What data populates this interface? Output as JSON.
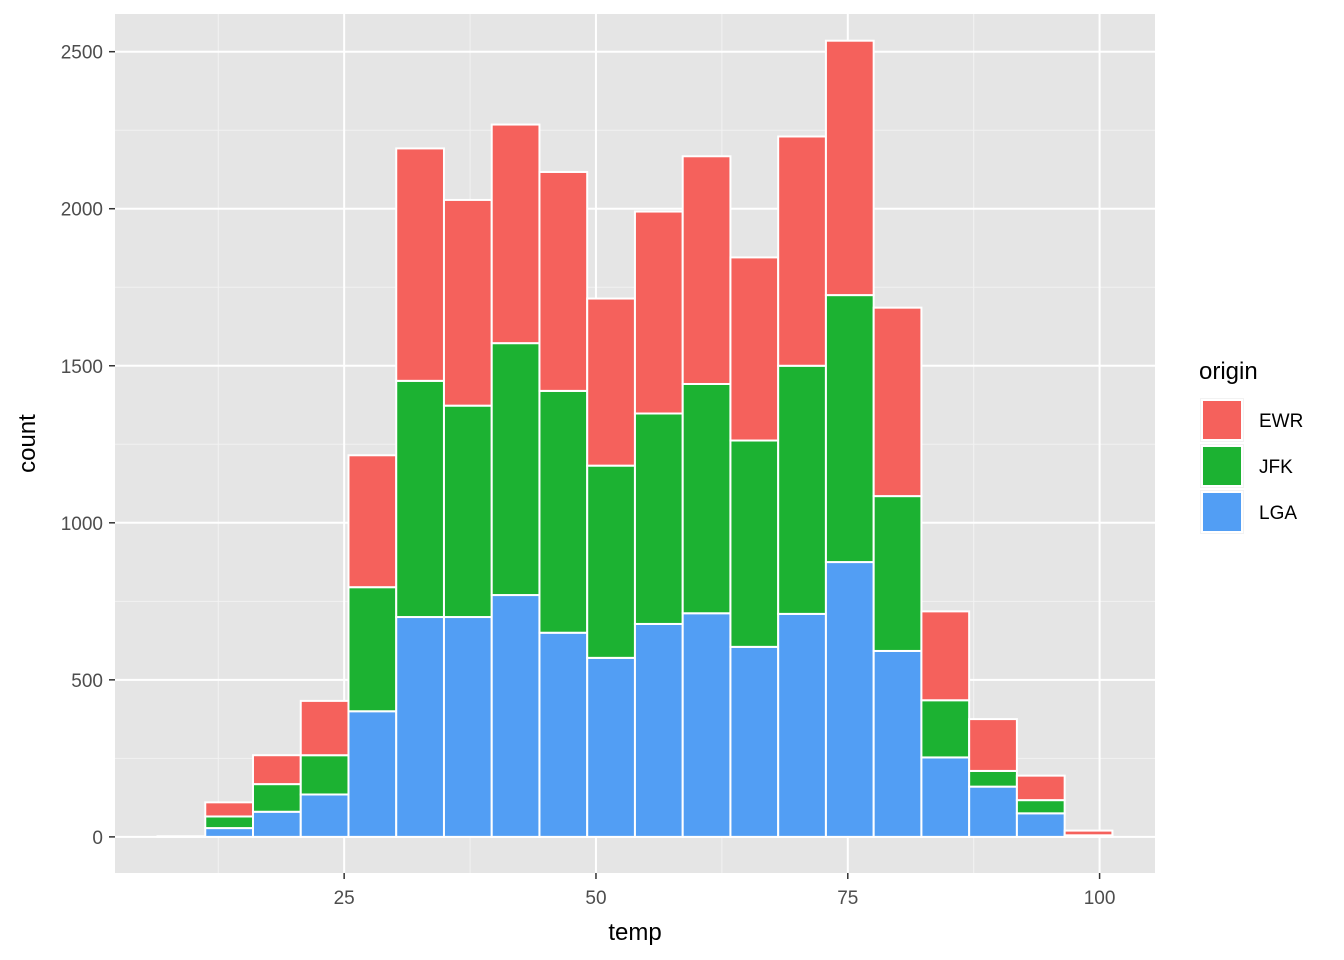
{
  "chart_data": {
    "type": "bar",
    "stacked": true,
    "xlabel": "temp",
    "ylabel": "count",
    "xlim": [
      2.25,
      105.5
    ],
    "ylim": [
      -115,
      2620
    ],
    "x_ticks": [
      25,
      50,
      75,
      100
    ],
    "y_ticks": [
      0,
      500,
      1000,
      1500,
      2000,
      2500
    ],
    "bin_width": 4.74,
    "bin_centers": [
      8.84,
      13.58,
      18.32,
      23.06,
      27.8,
      32.54,
      37.28,
      42.02,
      46.76,
      51.5,
      56.24,
      60.98,
      65.72,
      70.46,
      75.2,
      79.94,
      84.68,
      89.42,
      94.16,
      98.9
    ],
    "grid": true,
    "background": "#e5e5e5",
    "legend": {
      "title": "origin",
      "position": "right"
    },
    "series": [
      {
        "name": "LGA",
        "color": "#529ef4",
        "values": [
          0,
          28,
          80,
          135,
          400,
          700,
          700,
          770,
          650,
          570,
          678,
          712,
          605,
          710,
          875,
          592,
          253,
          160,
          75,
          3
        ]
      },
      {
        "name": "JFK",
        "color": "#1cb232",
        "values": [
          0,
          37,
          88,
          125,
          395,
          752,
          673,
          802,
          770,
          612,
          670,
          730,
          657,
          790,
          850,
          493,
          182,
          50,
          42,
          2
        ]
      },
      {
        "name": "EWR",
        "color": "#f5615c",
        "values": [
          2,
          45,
          92,
          173,
          420,
          740,
          655,
          696,
          697,
          532,
          643,
          725,
          583,
          730,
          810,
          600,
          283,
          165,
          78,
          15
        ]
      }
    ],
    "legend_order": [
      "EWR",
      "JFK",
      "LGA"
    ]
  }
}
